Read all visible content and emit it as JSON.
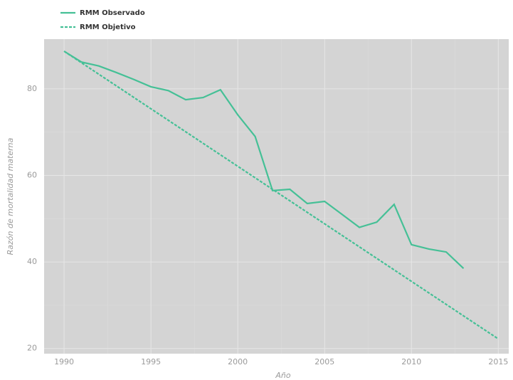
{
  "chart_data": {
    "type": "line",
    "xlabel": "Año",
    "ylabel": "Razón de mortalidad materna",
    "series": [
      {
        "name": "RMM Observado",
        "color": "#45c096",
        "dash": false,
        "x": [
          1990,
          1991,
          1992,
          1993,
          1994,
          1995,
          1996,
          1997,
          1998,
          1999,
          2000,
          2001,
          2002,
          2003,
          2004,
          2005,
          2006,
          2007,
          2008,
          2009,
          2010,
          2011,
          2012,
          2013
        ],
        "values": [
          88.7,
          86.2,
          85.3,
          83.8,
          82.2,
          80.5,
          79.6,
          77.5,
          78,
          79.8,
          74,
          69,
          56.5,
          56.8,
          53.5,
          54,
          51,
          48,
          49.2,
          53.3,
          44,
          43,
          42.3,
          38.5
        ]
      },
      {
        "name": "RMM Objetivo",
        "color": "#45c096",
        "dash": true,
        "x": [
          1990,
          2015
        ],
        "values": [
          88.7,
          22.2
        ]
      }
    ],
    "xlim": [
      1988.85,
      2015.6
    ],
    "ylim": [
      18.8,
      91.5
    ],
    "xticks": [
      1990,
      1995,
      2000,
      2005,
      2010,
      2015
    ],
    "yticks": [
      20,
      40,
      60,
      80
    ],
    "grid": true,
    "legend": "top-left"
  }
}
